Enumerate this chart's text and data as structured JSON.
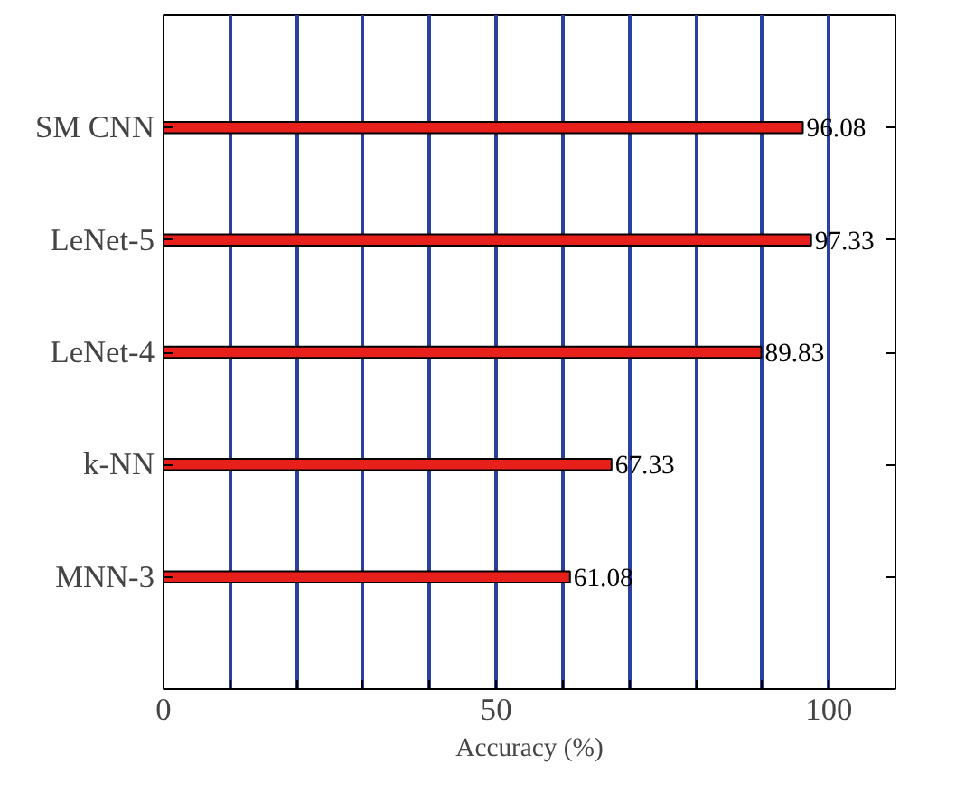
{
  "chart_data": {
    "type": "bar",
    "orientation": "horizontal",
    "xlabel": "Accuracy (%)",
    "categories": [
      "SM CNN",
      "LeNet-5",
      "LeNet-4",
      "k-NN",
      "MNN-3"
    ],
    "values": [
      96.08,
      97.33,
      89.83,
      67.33,
      61.08
    ],
    "color": "#e8201c",
    "data_labels": true,
    "xlim": [
      0,
      110
    ],
    "xticks": [
      0,
      {
        "value": 10,
        "label": null
      },
      {
        "value": 20,
        "label": null
      },
      {
        "value": 30,
        "label": null
      },
      {
        "value": 40,
        "label": null
      },
      50,
      {
        "value": 60,
        "label": null
      },
      {
        "value": 70,
        "label": null
      },
      {
        "value": 80,
        "label": null
      },
      {
        "value": 90,
        "label": null
      },
      100
    ],
    "grid": "x"
  }
}
